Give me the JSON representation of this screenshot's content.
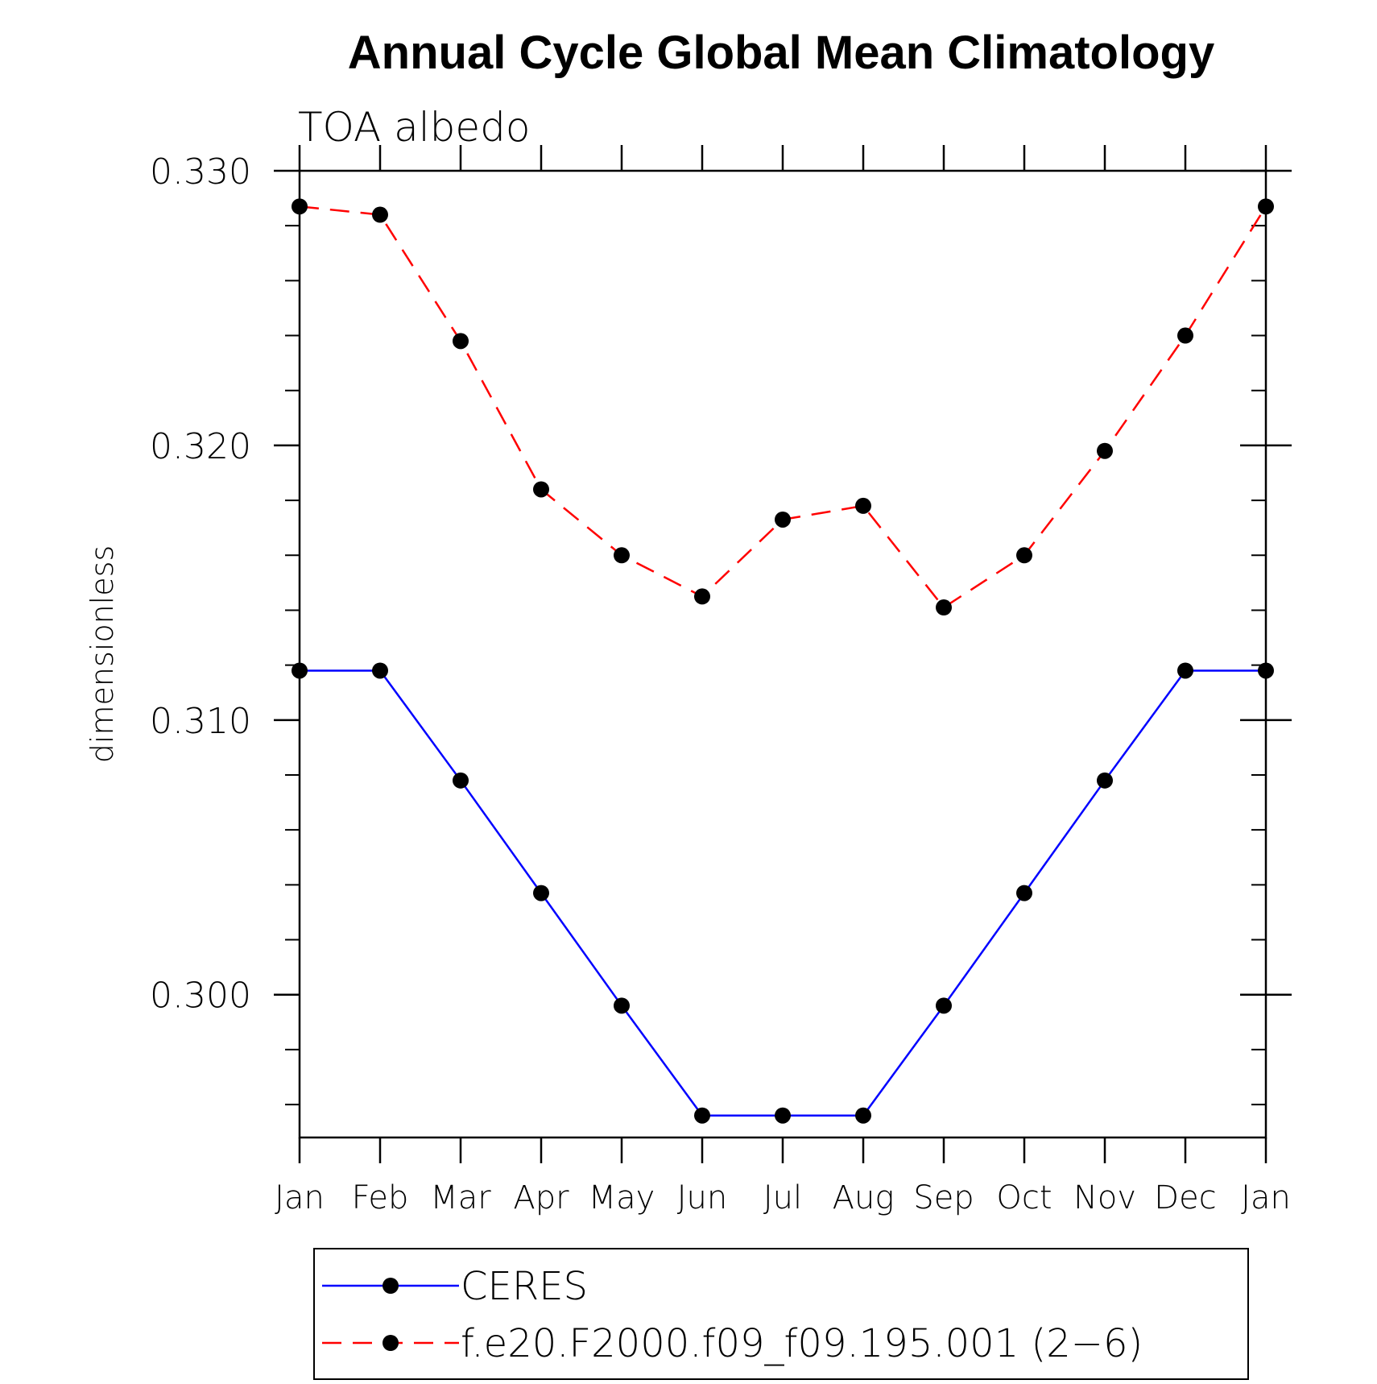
{
  "chart_data": {
    "type": "line",
    "title": "Annual Cycle Global Mean Climatology",
    "subtitle": "TOA albedo",
    "ylabel": "dimensionless",
    "xlabel": "",
    "categories": [
      "Jan",
      "Feb",
      "Mar",
      "Apr",
      "May",
      "Jun",
      "Jul",
      "Aug",
      "Sep",
      "Oct",
      "Nov",
      "Dec",
      "Jan"
    ],
    "ylim": [
      0.2948,
      0.33
    ],
    "yticks": [
      0.3,
      0.31,
      0.32,
      0.33
    ],
    "ytick_labels": [
      "0.300",
      "0.310",
      "0.320",
      "0.330"
    ],
    "grid": false,
    "legend_position": "bottom",
    "series": [
      {
        "name": "CERES",
        "color": "#0000ff",
        "line_style": "solid",
        "marker": "filled-circle",
        "values": [
          0.3118,
          0.3118,
          0.3078,
          0.3037,
          0.2996,
          0.2956,
          0.2956,
          0.2956,
          0.2996,
          0.3037,
          0.3078,
          0.3118,
          0.3118
        ]
      },
      {
        "name": "f.e20.F2000.f09_f09.195.001 (2−6)",
        "color": "#ff0000",
        "line_style": "dashed",
        "marker": "filled-circle",
        "values": [
          0.3287,
          0.3284,
          0.3238,
          0.3184,
          0.316,
          0.3145,
          0.3173,
          0.3178,
          0.3141,
          0.316,
          0.3198,
          0.324,
          0.3287
        ]
      }
    ]
  }
}
